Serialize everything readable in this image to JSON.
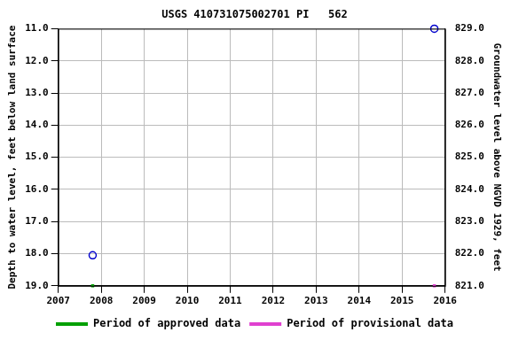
{
  "chart_data": {
    "type": "scatter",
    "title": "USGS 410731075002701 PI   562",
    "x_label": null,
    "y_label": "Depth to water level, feet below land surface",
    "y2_label": "Groundwater level above NGVD 1929, feet",
    "x": [
      2007.8,
      2015.75
    ],
    "series": [
      {
        "color": "#0000cc",
        "marker": "open_circle",
        "values": [
          18.05,
          11.0
        ]
      },
      {
        "name": "Period of approved data",
        "color": "#00a000",
        "marker": "square",
        "values": [
          19.0,
          null
        ]
      },
      {
        "name": "Period of provisional data",
        "color": "#e040d0",
        "marker": "square",
        "values": [
          null,
          19.0
        ]
      }
    ],
    "xlim": [
      2007,
      2016
    ],
    "xticks": [
      2007,
      2008,
      2009,
      2010,
      2011,
      2012,
      2013,
      2014,
      2015,
      2016
    ],
    "ylim": [
      19,
      11
    ],
    "yticks": [
      {
        "value": 11,
        "label": "11.0"
      },
      {
        "value": 12,
        "label": "12.0"
      },
      {
        "value": 13,
        "label": "13.0"
      },
      {
        "value": 14,
        "label": "14.0"
      },
      {
        "value": 15,
        "label": "15.0"
      },
      {
        "value": 16,
        "label": "16.0"
      },
      {
        "value": 17,
        "label": "17.0"
      },
      {
        "value": 18,
        "label": "18.0"
      },
      {
        "value": 19,
        "label": "19.0"
      }
    ],
    "y2lim": [
      821,
      829
    ],
    "y2ticks": [
      {
        "value": 821,
        "label": "821.0"
      },
      {
        "value": 822,
        "label": "822.0"
      },
      {
        "value": 823,
        "label": "823.0"
      },
      {
        "value": 824,
        "label": "824.0"
      },
      {
        "value": 825,
        "label": "825.0"
      },
      {
        "value": 826,
        "label": "826.0"
      },
      {
        "value": 827,
        "label": "827.0"
      },
      {
        "value": 828,
        "label": "828.0"
      },
      {
        "value": 829,
        "label": "829.0"
      }
    ],
    "grid": true,
    "legend": "bottom"
  }
}
